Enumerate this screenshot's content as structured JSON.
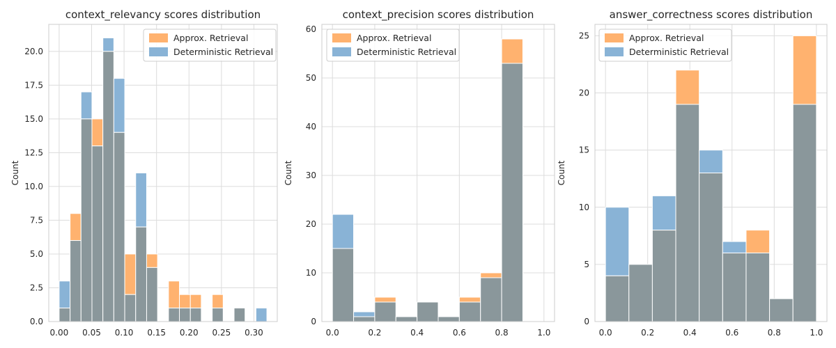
{
  "chart_data": [
    {
      "type": "histogram",
      "title": "context_relevancy scores distribution",
      "xlabel": "",
      "ylabel": "Count",
      "xlim": [
        -0.016,
        0.336
      ],
      "ylim": [
        0,
        22.0
      ],
      "xticks": [
        0.0,
        0.05,
        0.1,
        0.15,
        0.2,
        0.25,
        0.3
      ],
      "xtick_labels": [
        "0.00",
        "0.05",
        "0.10",
        "0.15",
        "0.20",
        "0.25",
        "0.30"
      ],
      "yticks": [
        0,
        2.5,
        5,
        7.5,
        10,
        12.5,
        15,
        17.5,
        20
      ],
      "ytick_labels": [
        "0.0",
        "2.5",
        "5.0",
        "7.5",
        "10.0",
        "12.5",
        "15.0",
        "17.5",
        "20.0"
      ],
      "bin_edges": [
        0.0,
        0.01684,
        0.03368,
        0.05053,
        0.06737,
        0.08421,
        0.10105,
        0.11789,
        0.13474,
        0.15158,
        0.16842,
        0.18526,
        0.20211,
        0.21895,
        0.23579,
        0.25263,
        0.26947,
        0.28632,
        0.30316,
        0.32
      ],
      "grid": true,
      "legend_position": "top-right",
      "series": [
        {
          "name": "Approx. Retrieval",
          "color": "#ffb26f",
          "values": [
            1,
            8,
            15,
            15,
            20,
            14,
            5,
            7,
            5,
            0,
            3,
            2,
            2,
            0,
            2,
            0,
            1,
            0,
            0
          ]
        },
        {
          "name": "Deterministic Retrieval",
          "color": "#89b3d6",
          "values": [
            3,
            6,
            17,
            13,
            21,
            18,
            2,
            11,
            4,
            0,
            1,
            1,
            1,
            0,
            1,
            0,
            1,
            0,
            1
          ]
        }
      ]
    },
    {
      "type": "histogram",
      "title": "context_precision scores distribution",
      "xlabel": "",
      "ylabel": "Count",
      "xlim": [
        -0.05,
        1.05
      ],
      "ylim": [
        0,
        61
      ],
      "xticks": [
        0.0,
        0.2,
        0.4,
        0.6,
        0.8,
        1.0
      ],
      "xtick_labels": [
        "0.0",
        "0.2",
        "0.4",
        "0.6",
        "0.8",
        "1.0"
      ],
      "yticks": [
        0,
        10,
        20,
        30,
        40,
        50,
        60
      ],
      "ytick_labels": [
        "0",
        "10",
        "20",
        "30",
        "40",
        "50",
        "60"
      ],
      "bin_edges": [
        0.0,
        0.1,
        0.2,
        0.3,
        0.4,
        0.5,
        0.6,
        0.7,
        0.8,
        0.9,
        1.0
      ],
      "grid": true,
      "legend_position": "top-left",
      "series": [
        {
          "name": "Approx. Retrieval",
          "color": "#ffb26f",
          "values": [
            15,
            1,
            5,
            1,
            4,
            1,
            5,
            10,
            58,
            0
          ]
        },
        {
          "name": "Deterministic Retrieval",
          "color": "#89b3d6",
          "values": [
            22,
            2,
            4,
            1,
            4,
            1,
            4,
            9,
            53,
            0
          ]
        }
      ]
    },
    {
      "type": "histogram",
      "title": "answer_correctness scores distribution",
      "xlabel": "",
      "ylabel": "Count",
      "xlim": [
        -0.05,
        1.05
      ],
      "ylim": [
        0,
        26
      ],
      "xticks": [
        0.0,
        0.2,
        0.4,
        0.6,
        0.8,
        1.0
      ],
      "xtick_labels": [
        "0.0",
        "0.2",
        "0.4",
        "0.6",
        "0.8",
        "1.0"
      ],
      "yticks": [
        0,
        5,
        10,
        15,
        20,
        25
      ],
      "ytick_labels": [
        "0",
        "5",
        "10",
        "15",
        "20",
        "25"
      ],
      "bin_edges": [
        0.0,
        0.1111,
        0.2222,
        0.3333,
        0.4444,
        0.5556,
        0.6667,
        0.7778,
        0.8889,
        1.0
      ],
      "grid": true,
      "legend_position": "top-left",
      "series": [
        {
          "name": "Approx. Retrieval",
          "color": "#ffb26f",
          "values": [
            4,
            5,
            8,
            22,
            13,
            6,
            8,
            2,
            25
          ]
        },
        {
          "name": "Deterministic Retrieval",
          "color": "#89b3d6",
          "values": [
            10,
            5,
            11,
            19,
            15,
            7,
            6,
            2,
            19
          ]
        }
      ]
    }
  ]
}
